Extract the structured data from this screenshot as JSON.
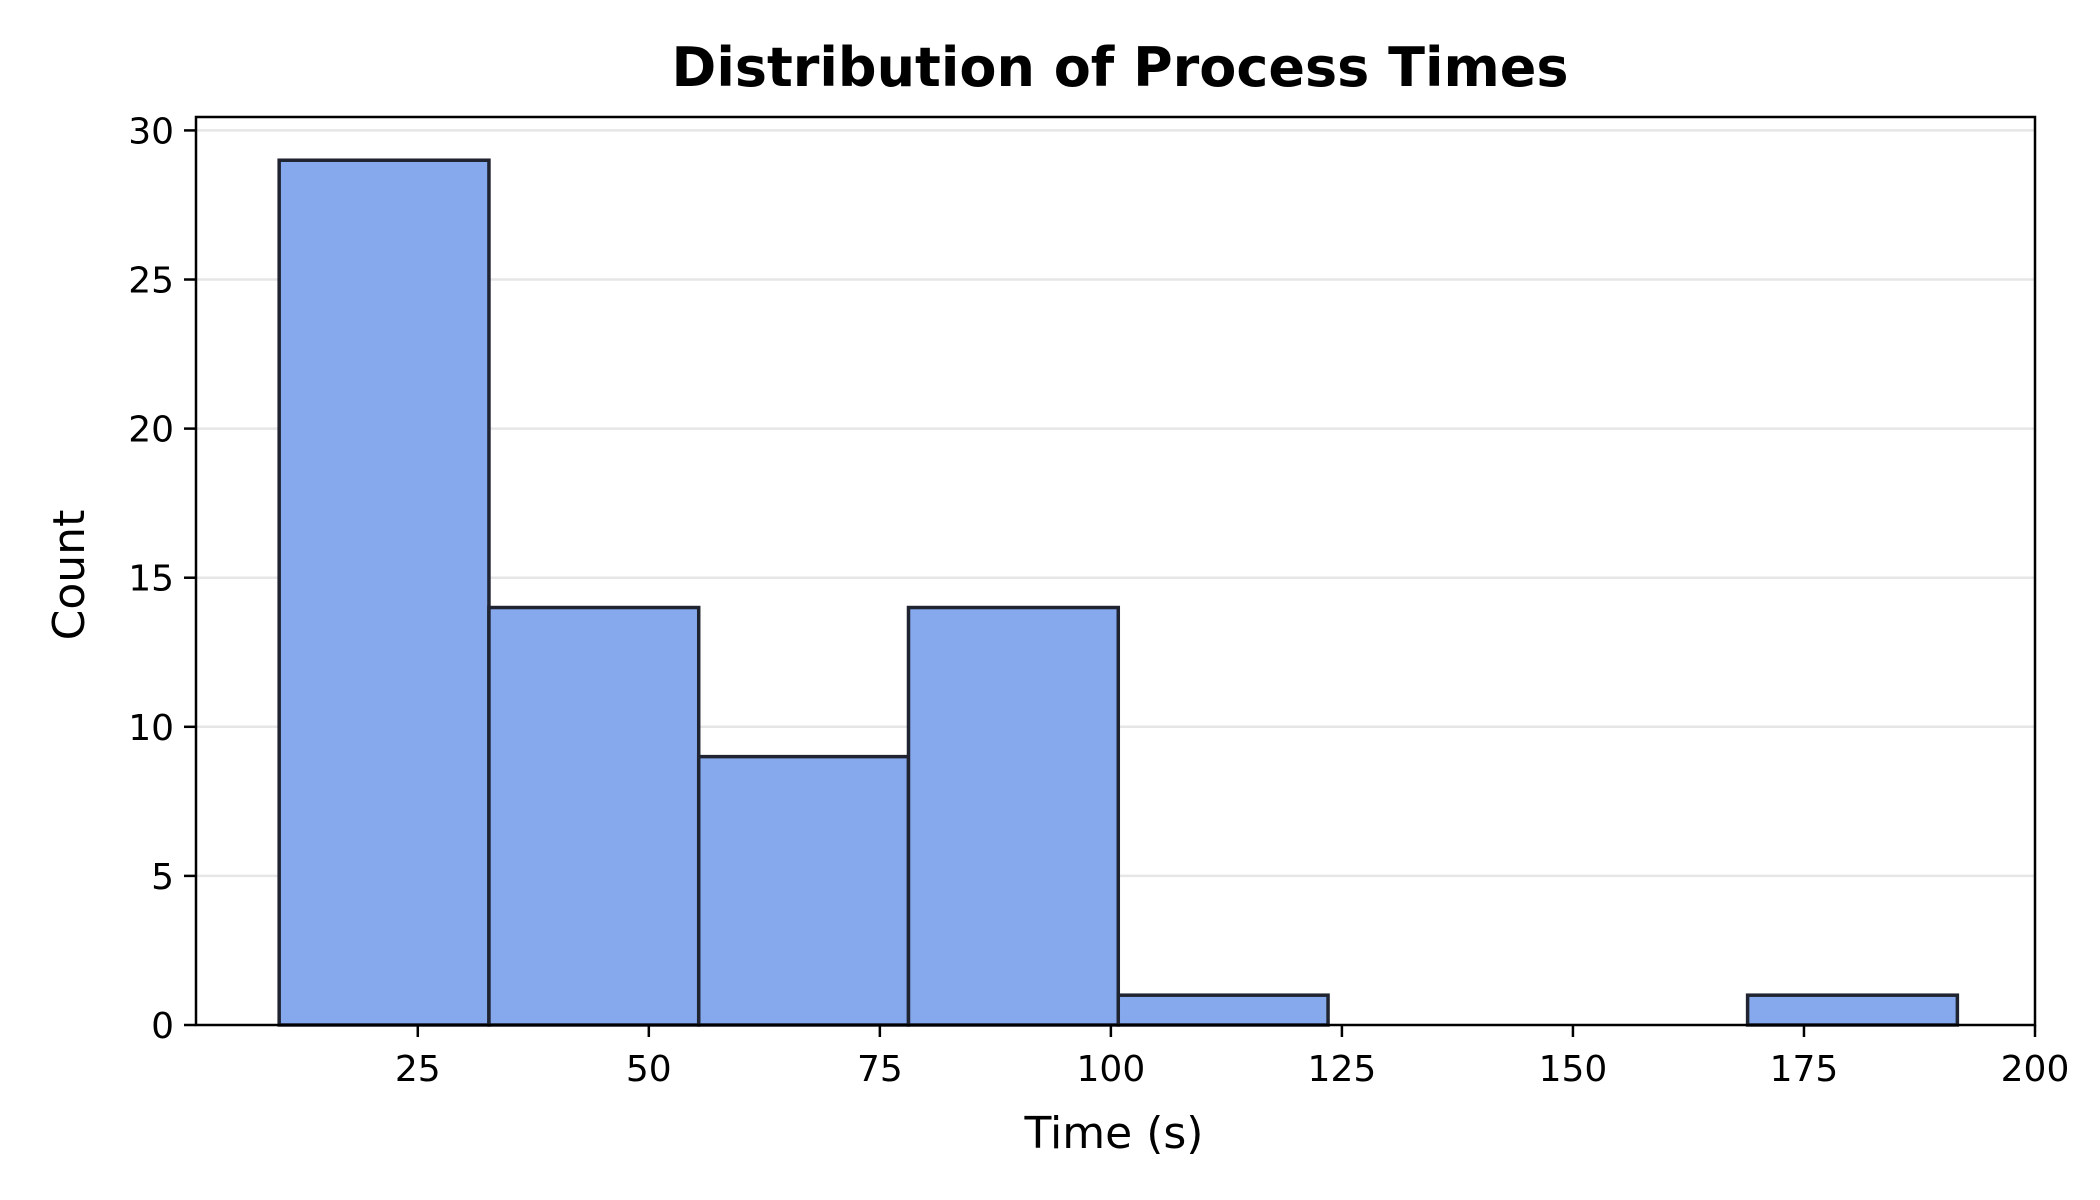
{
  "chart_data": {
    "type": "bar",
    "title": "Distribution of Process Times",
    "xlabel": "Time (s)",
    "ylabel": "Count",
    "bins": [
      {
        "start": 10.0,
        "end": 32.7,
        "count": 29
      },
      {
        "start": 32.7,
        "end": 55.4,
        "count": 14
      },
      {
        "start": 55.4,
        "end": 78.1,
        "count": 9
      },
      {
        "start": 78.1,
        "end": 100.8,
        "count": 14
      },
      {
        "start": 100.8,
        "end": 123.5,
        "count": 1
      },
      {
        "start": 123.5,
        "end": 146.2,
        "count": 0
      },
      {
        "start": 146.2,
        "end": 168.9,
        "count": 0
      },
      {
        "start": 168.9,
        "end": 191.6,
        "count": 1
      }
    ],
    "xlim": [
      1.0,
      200.0
    ],
    "ylim": [
      0,
      30.45
    ],
    "xticks": [
      25,
      50,
      75,
      100,
      125,
      150,
      175,
      200
    ],
    "yticks": [
      0,
      5,
      10,
      15,
      20,
      25,
      30
    ],
    "grid": "y",
    "legend": "none"
  },
  "colors": {
    "bar_fill": "#86a9ee",
    "bar_edge": "#1f2430",
    "grid": "#e6e6e6",
    "axis": "#000000"
  }
}
